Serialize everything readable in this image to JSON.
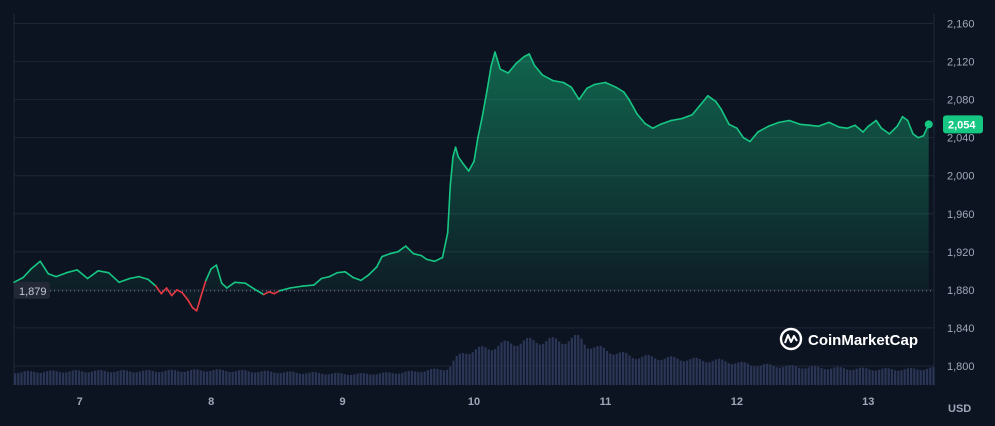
{
  "chart_data": {
    "type": "area",
    "currency_label": "USD",
    "logo_text": "CoinMarketCap",
    "baseline": {
      "value": 1879,
      "label": "1,879"
    },
    "last_price": {
      "value": 2054,
      "label": "2,054"
    },
    "ylim": [
      1780,
      2170
    ],
    "xlim": [
      6.5,
      13.5
    ],
    "y_ticks": [
      {
        "value": 1800,
        "label": "1,800"
      },
      {
        "value": 1840,
        "label": "1,840"
      },
      {
        "value": 1880,
        "label": "1,880"
      },
      {
        "value": 1920,
        "label": "1,920"
      },
      {
        "value": 1960,
        "label": "1,960"
      },
      {
        "value": 2000,
        "label": "2,000"
      },
      {
        "value": 2040,
        "label": "2,040"
      },
      {
        "value": 2080,
        "label": "2,080"
      },
      {
        "value": 2120,
        "label": "2,120"
      },
      {
        "value": 2160,
        "label": "2,160"
      }
    ],
    "x_ticks": [
      {
        "value": 7,
        "label": "7"
      },
      {
        "value": 8,
        "label": "8"
      },
      {
        "value": 9,
        "label": "9"
      },
      {
        "value": 10,
        "label": "10"
      },
      {
        "value": 11,
        "label": "11"
      },
      {
        "value": 12,
        "label": "12"
      },
      {
        "value": 13,
        "label": "13"
      }
    ],
    "colors": {
      "up": "#16c784",
      "down": "#ea3943",
      "volume": "#2b3556",
      "grid": "#1f2637",
      "badge_bg": "#16c784",
      "baseline_badge_bg": "#222836"
    },
    "price_series": [
      [
        6.5,
        1888
      ],
      [
        6.57,
        1893
      ],
      [
        6.63,
        1902
      ],
      [
        6.7,
        1910
      ],
      [
        6.76,
        1897
      ],
      [
        6.82,
        1894
      ],
      [
        6.9,
        1898
      ],
      [
        6.98,
        1901
      ],
      [
        7.06,
        1892
      ],
      [
        7.14,
        1900
      ],
      [
        7.22,
        1898
      ],
      [
        7.3,
        1888
      ],
      [
        7.38,
        1892
      ],
      [
        7.45,
        1894
      ],
      [
        7.52,
        1891
      ],
      [
        7.58,
        1884
      ],
      [
        7.62,
        1876
      ],
      [
        7.66,
        1882
      ],
      [
        7.7,
        1874
      ],
      [
        7.74,
        1880
      ],
      [
        7.78,
        1877
      ],
      [
        7.82,
        1870
      ],
      [
        7.86,
        1861
      ],
      [
        7.89,
        1858
      ],
      [
        7.92,
        1872
      ],
      [
        7.96,
        1890
      ],
      [
        8.0,
        1902
      ],
      [
        8.04,
        1906
      ],
      [
        8.08,
        1887
      ],
      [
        8.12,
        1882
      ],
      [
        8.18,
        1888
      ],
      [
        8.26,
        1887
      ],
      [
        8.34,
        1880
      ],
      [
        8.4,
        1875
      ],
      [
        8.44,
        1878
      ],
      [
        8.48,
        1876
      ],
      [
        8.52,
        1879
      ],
      [
        8.6,
        1882
      ],
      [
        8.7,
        1884
      ],
      [
        8.78,
        1885
      ],
      [
        8.84,
        1892
      ],
      [
        8.9,
        1894
      ],
      [
        8.96,
        1898
      ],
      [
        9.02,
        1899
      ],
      [
        9.08,
        1893
      ],
      [
        9.14,
        1890
      ],
      [
        9.2,
        1896
      ],
      [
        9.26,
        1904
      ],
      [
        9.3,
        1915
      ],
      [
        9.36,
        1918
      ],
      [
        9.42,
        1920
      ],
      [
        9.48,
        1926
      ],
      [
        9.54,
        1918
      ],
      [
        9.6,
        1916
      ],
      [
        9.64,
        1912
      ],
      [
        9.7,
        1910
      ],
      [
        9.76,
        1914
      ],
      [
        9.8,
        1940
      ],
      [
        9.82,
        1990
      ],
      [
        9.84,
        2020
      ],
      [
        9.86,
        2030
      ],
      [
        9.88,
        2020
      ],
      [
        9.92,
        2012
      ],
      [
        9.96,
        2005
      ],
      [
        10.0,
        2015
      ],
      [
        10.03,
        2040
      ],
      [
        10.06,
        2060
      ],
      [
        10.1,
        2090
      ],
      [
        10.13,
        2115
      ],
      [
        10.16,
        2130
      ],
      [
        10.2,
        2112
      ],
      [
        10.26,
        2108
      ],
      [
        10.32,
        2118
      ],
      [
        10.38,
        2125
      ],
      [
        10.42,
        2128
      ],
      [
        10.46,
        2116
      ],
      [
        10.52,
        2106
      ],
      [
        10.6,
        2100
      ],
      [
        10.68,
        2098
      ],
      [
        10.74,
        2093
      ],
      [
        10.8,
        2080
      ],
      [
        10.86,
        2092
      ],
      [
        10.92,
        2096
      ],
      [
        11.0,
        2098
      ],
      [
        11.08,
        2093
      ],
      [
        11.14,
        2088
      ],
      [
        11.18,
        2080
      ],
      [
        11.24,
        2065
      ],
      [
        11.3,
        2055
      ],
      [
        11.36,
        2050
      ],
      [
        11.42,
        2054
      ],
      [
        11.5,
        2058
      ],
      [
        11.58,
        2060
      ],
      [
        11.66,
        2064
      ],
      [
        11.72,
        2074
      ],
      [
        11.78,
        2084
      ],
      [
        11.84,
        2078
      ],
      [
        11.88,
        2070
      ],
      [
        11.94,
        2054
      ],
      [
        12.0,
        2050
      ],
      [
        12.05,
        2040
      ],
      [
        12.1,
        2036
      ],
      [
        12.16,
        2046
      ],
      [
        12.24,
        2052
      ],
      [
        12.32,
        2056
      ],
      [
        12.4,
        2058
      ],
      [
        12.48,
        2054
      ],
      [
        12.56,
        2053
      ],
      [
        12.62,
        2052
      ],
      [
        12.7,
        2056
      ],
      [
        12.78,
        2051
      ],
      [
        12.84,
        2050
      ],
      [
        12.9,
        2053
      ],
      [
        12.96,
        2046
      ],
      [
        13.0,
        2052
      ],
      [
        13.06,
        2058
      ],
      [
        13.1,
        2050
      ],
      [
        13.16,
        2044
      ],
      [
        13.22,
        2052
      ],
      [
        13.26,
        2062
      ],
      [
        13.3,
        2058
      ],
      [
        13.34,
        2044
      ],
      [
        13.38,
        2040
      ],
      [
        13.42,
        2042
      ],
      [
        13.46,
        2054
      ]
    ],
    "down_segments": [
      [
        7.58,
        7.96
      ],
      [
        8.4,
        8.52
      ]
    ],
    "volume_series": [
      [
        6.5,
        14
      ],
      [
        7.0,
        15
      ],
      [
        7.5,
        15
      ],
      [
        8.0,
        16
      ],
      [
        8.5,
        14
      ],
      [
        9.0,
        12
      ],
      [
        9.2,
        12
      ],
      [
        9.5,
        14
      ],
      [
        9.8,
        18
      ],
      [
        9.85,
        28
      ],
      [
        9.92,
        36
      ],
      [
        10.0,
        38
      ],
      [
        10.1,
        40
      ],
      [
        10.2,
        44
      ],
      [
        10.35,
        47
      ],
      [
        10.5,
        48
      ],
      [
        10.65,
        48
      ],
      [
        10.75,
        50
      ],
      [
        10.8,
        51
      ],
      [
        10.85,
        44
      ],
      [
        10.92,
        40
      ],
      [
        11.0,
        38
      ],
      [
        11.1,
        34
      ],
      [
        11.2,
        31
      ],
      [
        11.35,
        30
      ],
      [
        11.6,
        28
      ],
      [
        11.9,
        26
      ],
      [
        12.1,
        22
      ],
      [
        12.4,
        20
      ],
      [
        12.8,
        18
      ],
      [
        13.1,
        17
      ],
      [
        13.3,
        17
      ],
      [
        13.46,
        18
      ]
    ]
  }
}
